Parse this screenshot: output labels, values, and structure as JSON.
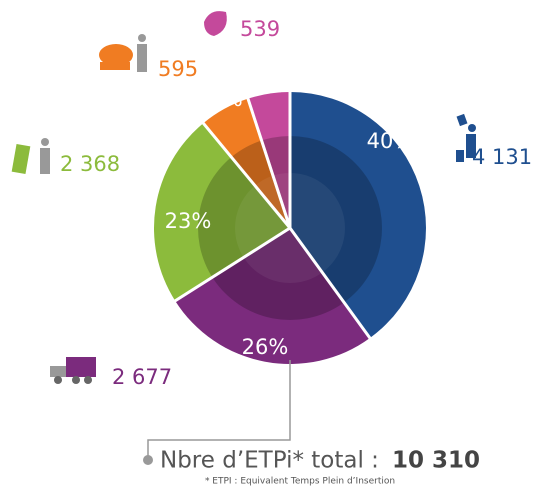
{
  "chart_data": {
    "type": "pie",
    "values": [
      40,
      26,
      23,
      6,
      5
    ],
    "value_labels": [
      "40%",
      "26%",
      "23%",
      "6%",
      "5%"
    ],
    "colors": [
      "#1f4f8f",
      "#7b2b7d",
      "#8cbb3c",
      "#f07c22",
      "#c4499b"
    ],
    "counts": [
      4131,
      2677,
      2368,
      595,
      539
    ],
    "count_labels": [
      "4 131",
      "2 677",
      "2 368",
      "595",
      "539"
    ],
    "total_label": "Nbre d’ETPi* total :",
    "total": 10310,
    "total_value_label": "10 310",
    "footnote": "* ETPI : Equivalent Temps Plein d’Insertion"
  }
}
